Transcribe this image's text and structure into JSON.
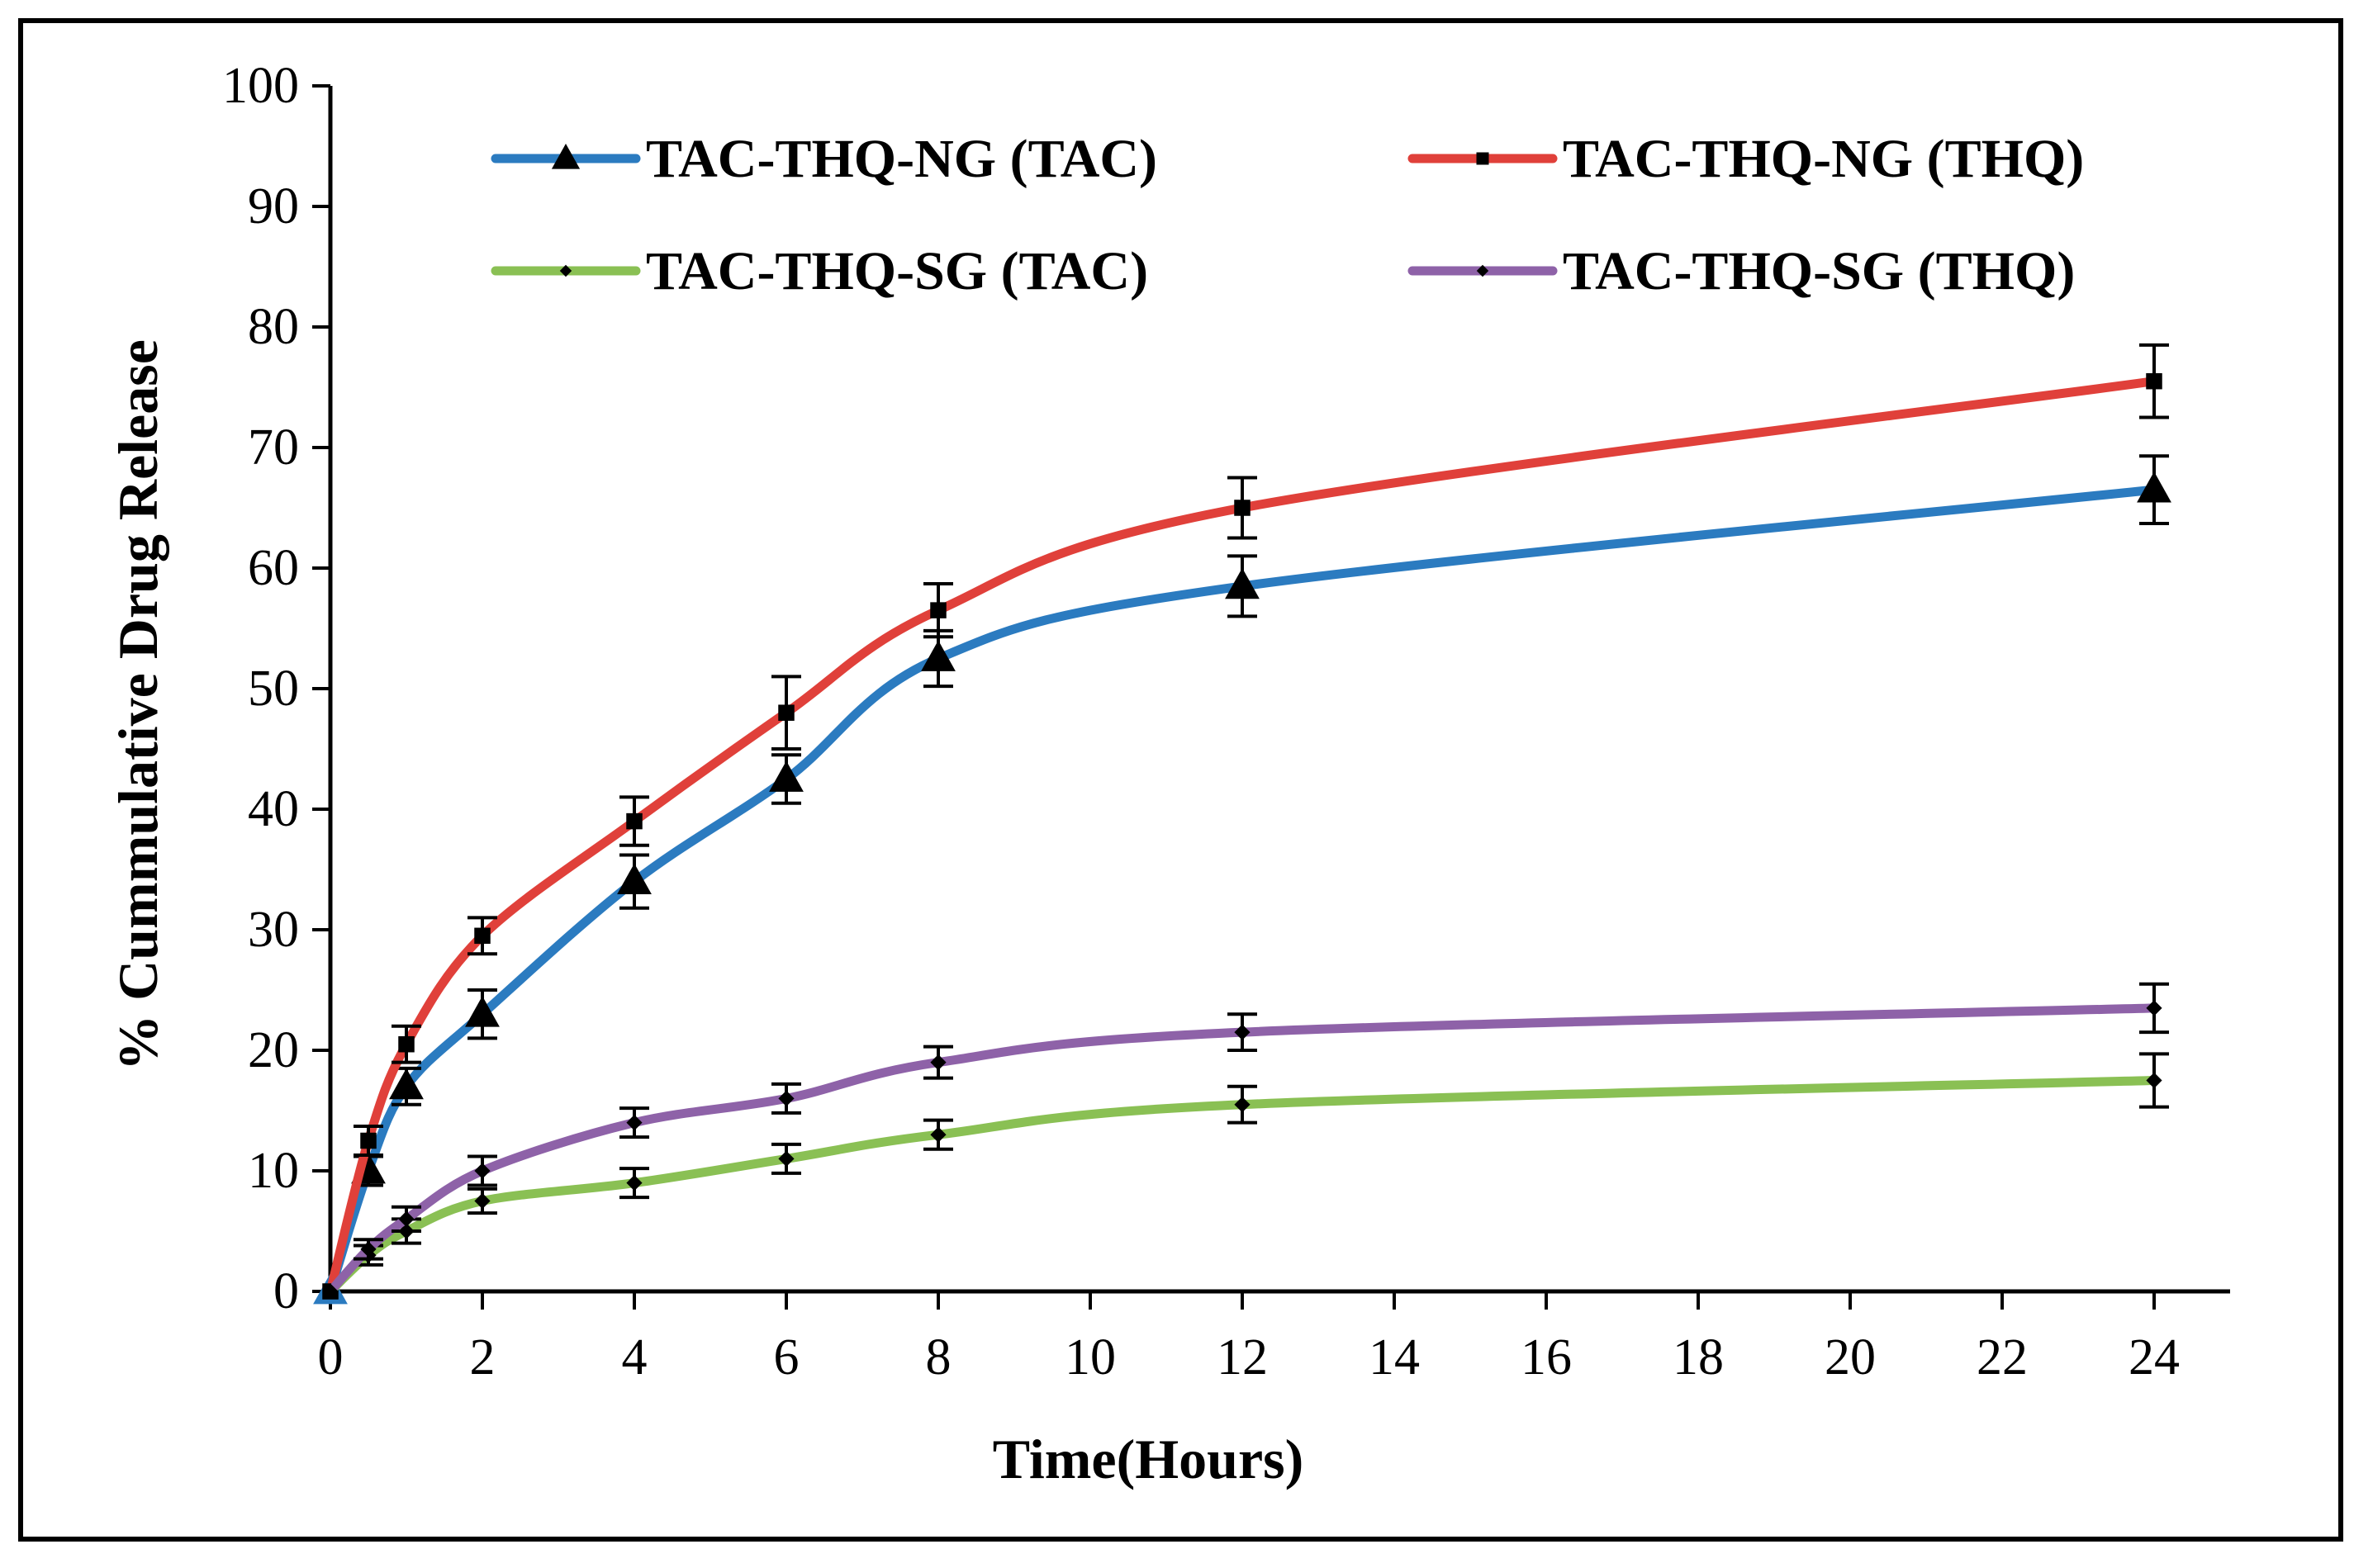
{
  "chart_data": {
    "type": "line",
    "title": "",
    "xlabel": "Time(Hours)",
    "ylabel": "% Cummulative  Drug Release",
    "xlim": [
      0,
      25
    ],
    "ylim": [
      0,
      100
    ],
    "x_ticks": [
      0,
      2,
      4,
      6,
      8,
      10,
      12,
      14,
      16,
      18,
      20,
      22,
      24
    ],
    "y_ticks": [
      0,
      10,
      20,
      30,
      40,
      50,
      60,
      70,
      80,
      90,
      100
    ],
    "grid": false,
    "legend_position": "top",
    "x": [
      0,
      0.5,
      1,
      2,
      4,
      6,
      8,
      12,
      24
    ],
    "series": [
      {
        "name": "TAC-THQ-NG (TAC)",
        "color": "#2b7bc0",
        "marker": "triangle",
        "values": [
          0,
          10,
          17,
          23,
          34,
          42.5,
          52.5,
          58.5,
          66.5
        ],
        "errors": [
          0,
          1.2,
          1.5,
          2,
          2.2,
          2,
          2.3,
          2.5,
          2.8
        ]
      },
      {
        "name": "TAC-THQ-NG (THQ)",
        "color": "#e0403a",
        "marker": "square",
        "values": [
          0,
          12.5,
          20.5,
          29.5,
          39,
          48,
          56.5,
          65,
          75.5
        ],
        "errors": [
          0,
          1.2,
          1.5,
          1.5,
          2,
          3,
          2.2,
          2.5,
          3
        ]
      },
      {
        "name": "TAC-THQ-SG (TAC)",
        "color": "#8ac054",
        "marker": "diamond",
        "values": [
          0,
          3,
          5,
          7.5,
          9,
          11,
          13,
          15.5,
          17.5
        ],
        "errors": [
          0,
          0.8,
          1,
          1,
          1.2,
          1.2,
          1.2,
          1.5,
          2.2
        ]
      },
      {
        "name": "TAC-THQ-SG (THQ)",
        "color": "#8e62a8",
        "marker": "diamond",
        "values": [
          0,
          3.5,
          6,
          10,
          14,
          16,
          19,
          21.5,
          23.5
        ],
        "errors": [
          0,
          0.8,
          1,
          1.2,
          1.2,
          1.2,
          1.3,
          1.5,
          2
        ]
      }
    ]
  }
}
